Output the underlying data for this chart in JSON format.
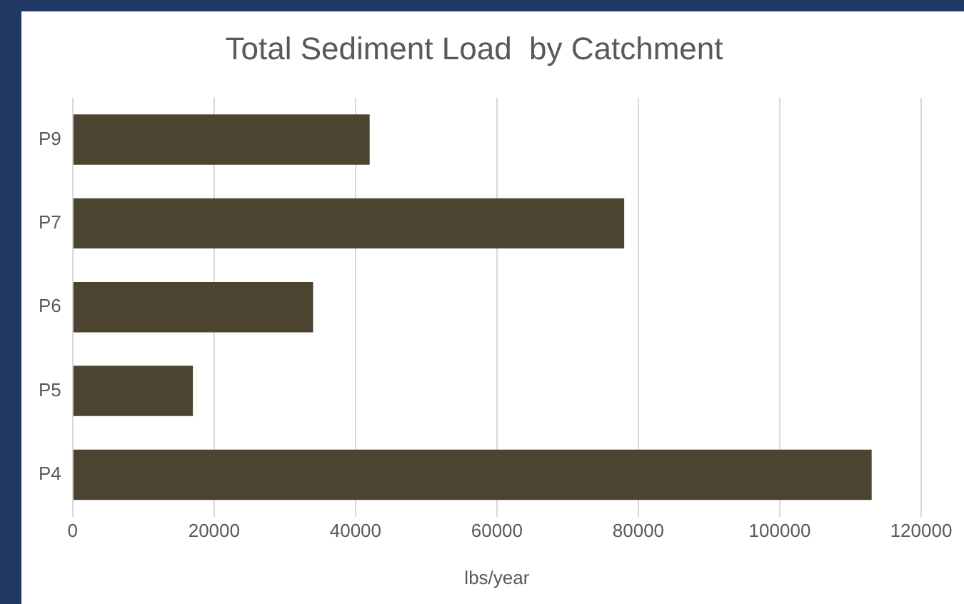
{
  "chart_data": {
    "type": "bar",
    "orientation": "horizontal",
    "title": "Total Sediment Load  by Catchment",
    "xlabel": "lbs/year",
    "categories": [
      "P9",
      "P7",
      "P6",
      "P5",
      "P4"
    ],
    "values": [
      42000,
      78000,
      34000,
      17000,
      113000
    ],
    "color": "#4b4430",
    "xlim": [
      0,
      120000
    ],
    "xticks": [
      0,
      20000,
      40000,
      60000,
      80000,
      100000,
      120000
    ],
    "grid": "x",
    "legend": false
  }
}
